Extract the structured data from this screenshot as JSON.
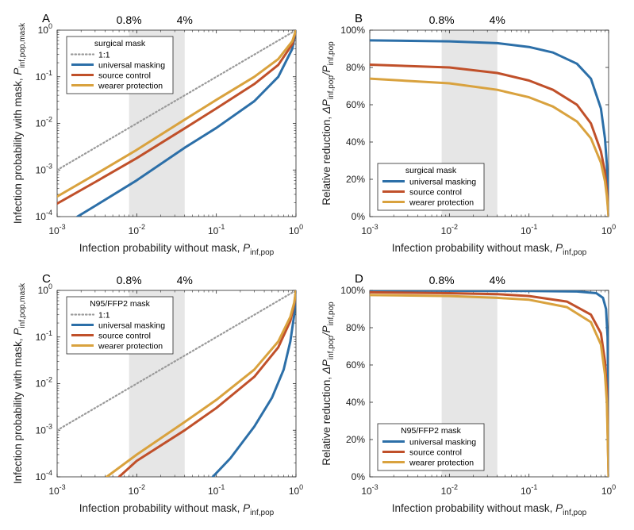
{
  "figure": {
    "xlabel_main": "Infection probability without mask,",
    "xlabel_sym": "P",
    "xlabel_sub": "inf,pop",
    "ylabel_abs_main": "Infection probability with mask,",
    "ylabel_abs_sym": "P",
    "ylabel_abs_sub": "inf,pop,mask",
    "ylabel_rel_main": "Relative reduction,",
    "ylabel_rel_delta": "ΔP",
    "ylabel_rel_sub1": "inf,pop",
    "ylabel_rel_slash": "/P",
    "ylabel_rel_sub2": "inf,pop",
    "band_labels": [
      "0.8%",
      "4%"
    ],
    "x_ticks": [
      {
        "base": "10",
        "exp": "-3"
      },
      {
        "base": "10",
        "exp": "-2"
      },
      {
        "base": "10",
        "exp": "-1"
      },
      {
        "base": "10",
        "exp": "0"
      }
    ],
    "y_ticks_log": [
      {
        "base": "10",
        "exp": "-4"
      },
      {
        "base": "10",
        "exp": "-3"
      },
      {
        "base": "10",
        "exp": "-2"
      },
      {
        "base": "10",
        "exp": "-1"
      },
      {
        "base": "10",
        "exp": "0"
      }
    ],
    "y_ticks_pct": [
      "0%",
      "20%",
      "40%",
      "60%",
      "80%",
      "100%"
    ],
    "colors": {
      "one_to_one": "#9a9a9a",
      "universal_masking": "#2c6fa8",
      "source_control": "#c0502a",
      "wearer_protection": "#d9a23e",
      "band": "#e6e6e6"
    }
  },
  "chart_data": [
    {
      "panel": "A",
      "type": "line",
      "x_scale": "log",
      "y_scale": "log",
      "xlim": [
        0.001,
        1
      ],
      "ylim": [
        0.0001,
        1
      ],
      "shaded_range_x": [
        0.008,
        0.04
      ],
      "legend": {
        "title": "surgical mask",
        "placement": "top-left",
        "entries": [
          "1:1",
          "universal masking",
          "source control",
          "wearer protection"
        ]
      },
      "series": [
        {
          "name": "1:1",
          "style": "dotted",
          "x": [
            0.001,
            0.01,
            0.1,
            1
          ],
          "y": [
            0.001,
            0.01,
            0.1,
            1
          ]
        },
        {
          "name": "universal masking",
          "x": [
            0.0018,
            0.003,
            0.01,
            0.04,
            0.1,
            0.3,
            0.6,
            0.9,
            1
          ],
          "y": [
            0.0001,
            0.00017,
            0.0006,
            0.003,
            0.008,
            0.03,
            0.1,
            0.4,
            1
          ]
        },
        {
          "name": "source control",
          "x": [
            0.001,
            0.003,
            0.01,
            0.04,
            0.1,
            0.3,
            0.6,
            0.9,
            1
          ],
          "y": [
            0.00019,
            0.00055,
            0.0018,
            0.0078,
            0.021,
            0.07,
            0.18,
            0.5,
            1
          ]
        },
        {
          "name": "wearer protection",
          "x": [
            0.001,
            0.003,
            0.01,
            0.04,
            0.1,
            0.3,
            0.6,
            0.9,
            1
          ],
          "y": [
            0.00027,
            0.0008,
            0.0027,
            0.012,
            0.032,
            0.1,
            0.24,
            0.58,
            1
          ]
        }
      ]
    },
    {
      "panel": "B",
      "type": "line",
      "x_scale": "log",
      "xlim": [
        0.001,
        1
      ],
      "ylim": [
        0,
        100
      ],
      "y_unit": "%",
      "shaded_range_x": [
        0.008,
        0.04
      ],
      "legend": {
        "title": "surgical mask",
        "placement": "bottom-left",
        "entries": [
          "universal masking",
          "source control",
          "wearer protection"
        ]
      },
      "series": [
        {
          "name": "universal masking",
          "x": [
            0.001,
            0.01,
            0.04,
            0.1,
            0.2,
            0.4,
            0.6,
            0.8,
            0.9,
            0.95,
            1
          ],
          "y": [
            94.5,
            94,
            93,
            91,
            88,
            82,
            74,
            58,
            42,
            28,
            0
          ]
        },
        {
          "name": "source control",
          "x": [
            0.001,
            0.01,
            0.04,
            0.1,
            0.2,
            0.4,
            0.6,
            0.8,
            0.9,
            0.95,
            1
          ],
          "y": [
            81.5,
            80,
            77,
            73,
            68,
            60,
            50,
            35,
            24,
            14,
            0
          ]
        },
        {
          "name": "wearer protection",
          "x": [
            0.001,
            0.01,
            0.04,
            0.1,
            0.2,
            0.4,
            0.6,
            0.8,
            0.9,
            0.95,
            1
          ],
          "y": [
            74,
            71.5,
            68,
            64,
            59,
            51,
            42,
            29,
            19,
            11,
            0
          ]
        }
      ]
    },
    {
      "panel": "C",
      "type": "line",
      "x_scale": "log",
      "y_scale": "log",
      "xlim": [
        0.001,
        1
      ],
      "ylim": [
        0.0001,
        1
      ],
      "shaded_range_x": [
        0.008,
        0.04
      ],
      "legend": {
        "title": "N95/FFP2 mask",
        "placement": "top-left",
        "entries": [
          "1:1",
          "universal masking",
          "source control",
          "wearer protection"
        ]
      },
      "series": [
        {
          "name": "1:1",
          "style": "dotted",
          "x": [
            0.001,
            0.01,
            0.1,
            1
          ],
          "y": [
            0.001,
            0.01,
            0.1,
            1
          ]
        },
        {
          "name": "universal masking",
          "x": [
            0.09,
            0.15,
            0.3,
            0.5,
            0.7,
            0.85,
            0.95,
            1
          ],
          "y": [
            0.0001,
            0.00025,
            0.0012,
            0.005,
            0.02,
            0.08,
            0.3,
            1
          ]
        },
        {
          "name": "source control",
          "x": [
            0.006,
            0.01,
            0.04,
            0.1,
            0.3,
            0.6,
            0.85,
            0.95,
            1
          ],
          "y": [
            0.0001,
            0.00022,
            0.001,
            0.003,
            0.014,
            0.06,
            0.22,
            0.5,
            1
          ]
        },
        {
          "name": "wearer protection",
          "x": [
            0.0042,
            0.01,
            0.04,
            0.1,
            0.3,
            0.6,
            0.85,
            0.95,
            1
          ],
          "y": [
            0.0001,
            0.0003,
            0.0015,
            0.0045,
            0.02,
            0.08,
            0.27,
            0.55,
            1
          ]
        }
      ]
    },
    {
      "panel": "D",
      "type": "line",
      "x_scale": "log",
      "xlim": [
        0.001,
        1
      ],
      "ylim": [
        0,
        100
      ],
      "y_unit": "%",
      "shaded_range_x": [
        0.008,
        0.04
      ],
      "legend": {
        "title": "N95/FFP2 mask",
        "placement": "bottom-left",
        "entries": [
          "universal masking",
          "source control",
          "wearer protection"
        ]
      },
      "series": [
        {
          "name": "universal masking",
          "x": [
            0.001,
            0.1,
            0.4,
            0.7,
            0.85,
            0.93,
            0.97,
            0.99,
            1
          ],
          "y": [
            99.9,
            99.7,
            99.4,
            98.5,
            96,
            90,
            75,
            45,
            0
          ]
        },
        {
          "name": "source control",
          "x": [
            0.001,
            0.01,
            0.04,
            0.1,
            0.3,
            0.6,
            0.8,
            0.9,
            0.95,
            1
          ],
          "y": [
            99,
            98.5,
            98,
            97,
            94,
            87,
            77,
            62,
            46,
            0
          ]
        },
        {
          "name": "wearer protection",
          "x": [
            0.001,
            0.01,
            0.04,
            0.1,
            0.3,
            0.6,
            0.8,
            0.9,
            0.95,
            1
          ],
          "y": [
            97.5,
            97,
            96,
            95,
            91,
            83,
            71,
            55,
            40,
            0
          ]
        }
      ]
    }
  ]
}
